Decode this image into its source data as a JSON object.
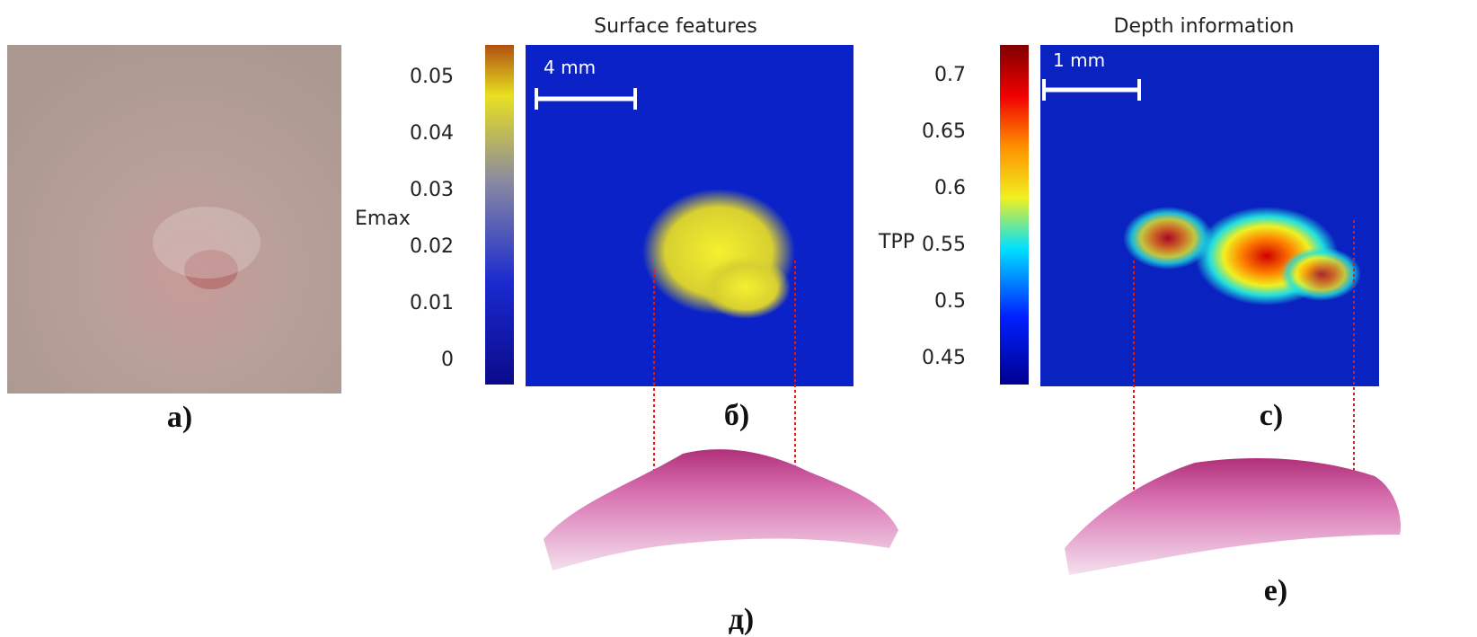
{
  "panels": [
    {
      "label": "a)"
    },
    {
      "title": "Surface features",
      "label": "б)",
      "scale_bar": "4 mm",
      "colorbar": {
        "label": "Emax",
        "ticks": [
          0.05,
          0.04,
          0.03,
          0.02,
          0.01,
          0
        ]
      }
    },
    {
      "title": "Depth information",
      "label": "c)",
      "scale_bar": "1 mm",
      "colorbar": {
        "label": "TPP",
        "ticks": [
          0.7,
          0.65,
          0.6,
          0.55,
          0.5,
          0.45
        ]
      }
    }
  ],
  "histology": [
    {
      "label": "д)"
    },
    {
      "label": "е)"
    }
  ]
}
